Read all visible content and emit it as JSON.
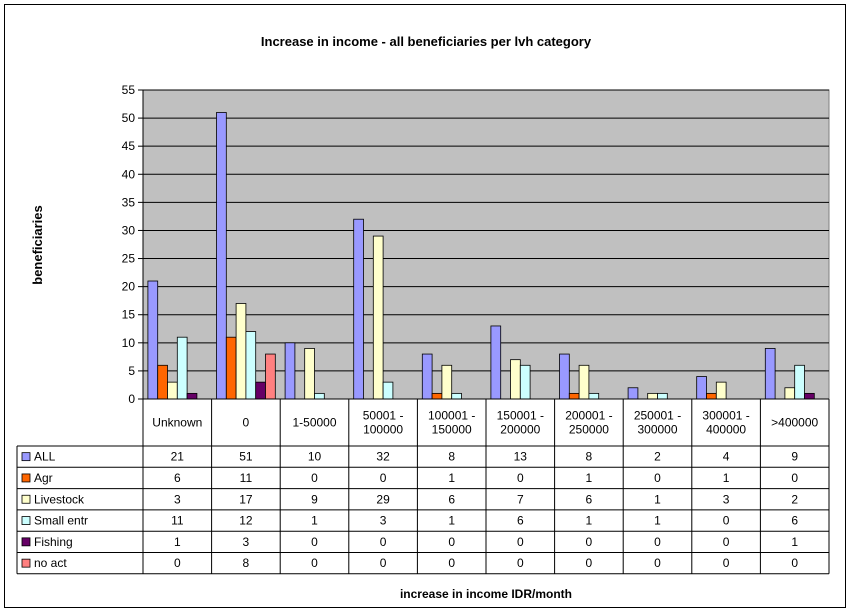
{
  "chart_data": {
    "type": "bar",
    "title": "Increase in income - all beneficiaries per lvh category",
    "xlabel": "increase in income IDR/month",
    "ylabel": "beneficiaries",
    "ylim": [
      0,
      55
    ],
    "yticks": [
      0,
      5,
      10,
      15,
      20,
      25,
      30,
      35,
      40,
      45,
      50,
      55
    ],
    "grid": true,
    "legend": "data-table",
    "categories": [
      [
        "Unknown"
      ],
      [
        "0"
      ],
      [
        "1-50000"
      ],
      [
        "50001 -",
        "100000"
      ],
      [
        "100001 -",
        "150000"
      ],
      [
        "150001 -",
        "200000"
      ],
      [
        "200001 -",
        "250000"
      ],
      [
        "250001 -",
        "300000"
      ],
      [
        "300001 -",
        "400000"
      ],
      [
        ">400000"
      ]
    ],
    "series": [
      {
        "name": "ALL",
        "color": "#9999ff",
        "values": [
          21,
          51,
          10,
          32,
          8,
          13,
          8,
          2,
          4,
          9
        ]
      },
      {
        "name": "Agr",
        "color": "#ff6600",
        "values": [
          6,
          11,
          0,
          0,
          1,
          0,
          1,
          0,
          1,
          0
        ]
      },
      {
        "name": "Livestock",
        "color": "#ffffcc",
        "values": [
          3,
          17,
          9,
          29,
          6,
          7,
          6,
          1,
          3,
          2
        ]
      },
      {
        "name": "Small entr",
        "color": "#ccffff",
        "values": [
          11,
          12,
          1,
          3,
          1,
          6,
          1,
          1,
          0,
          6
        ]
      },
      {
        "name": "Fishing",
        "color": "#660066",
        "values": [
          1,
          3,
          0,
          0,
          0,
          0,
          0,
          0,
          0,
          1
        ]
      },
      {
        "name": "no act",
        "color": "#ff8080",
        "values": [
          0,
          8,
          0,
          0,
          0,
          0,
          0,
          0,
          0,
          0
        ]
      }
    ],
    "plot_background": "#c0c0c0"
  }
}
